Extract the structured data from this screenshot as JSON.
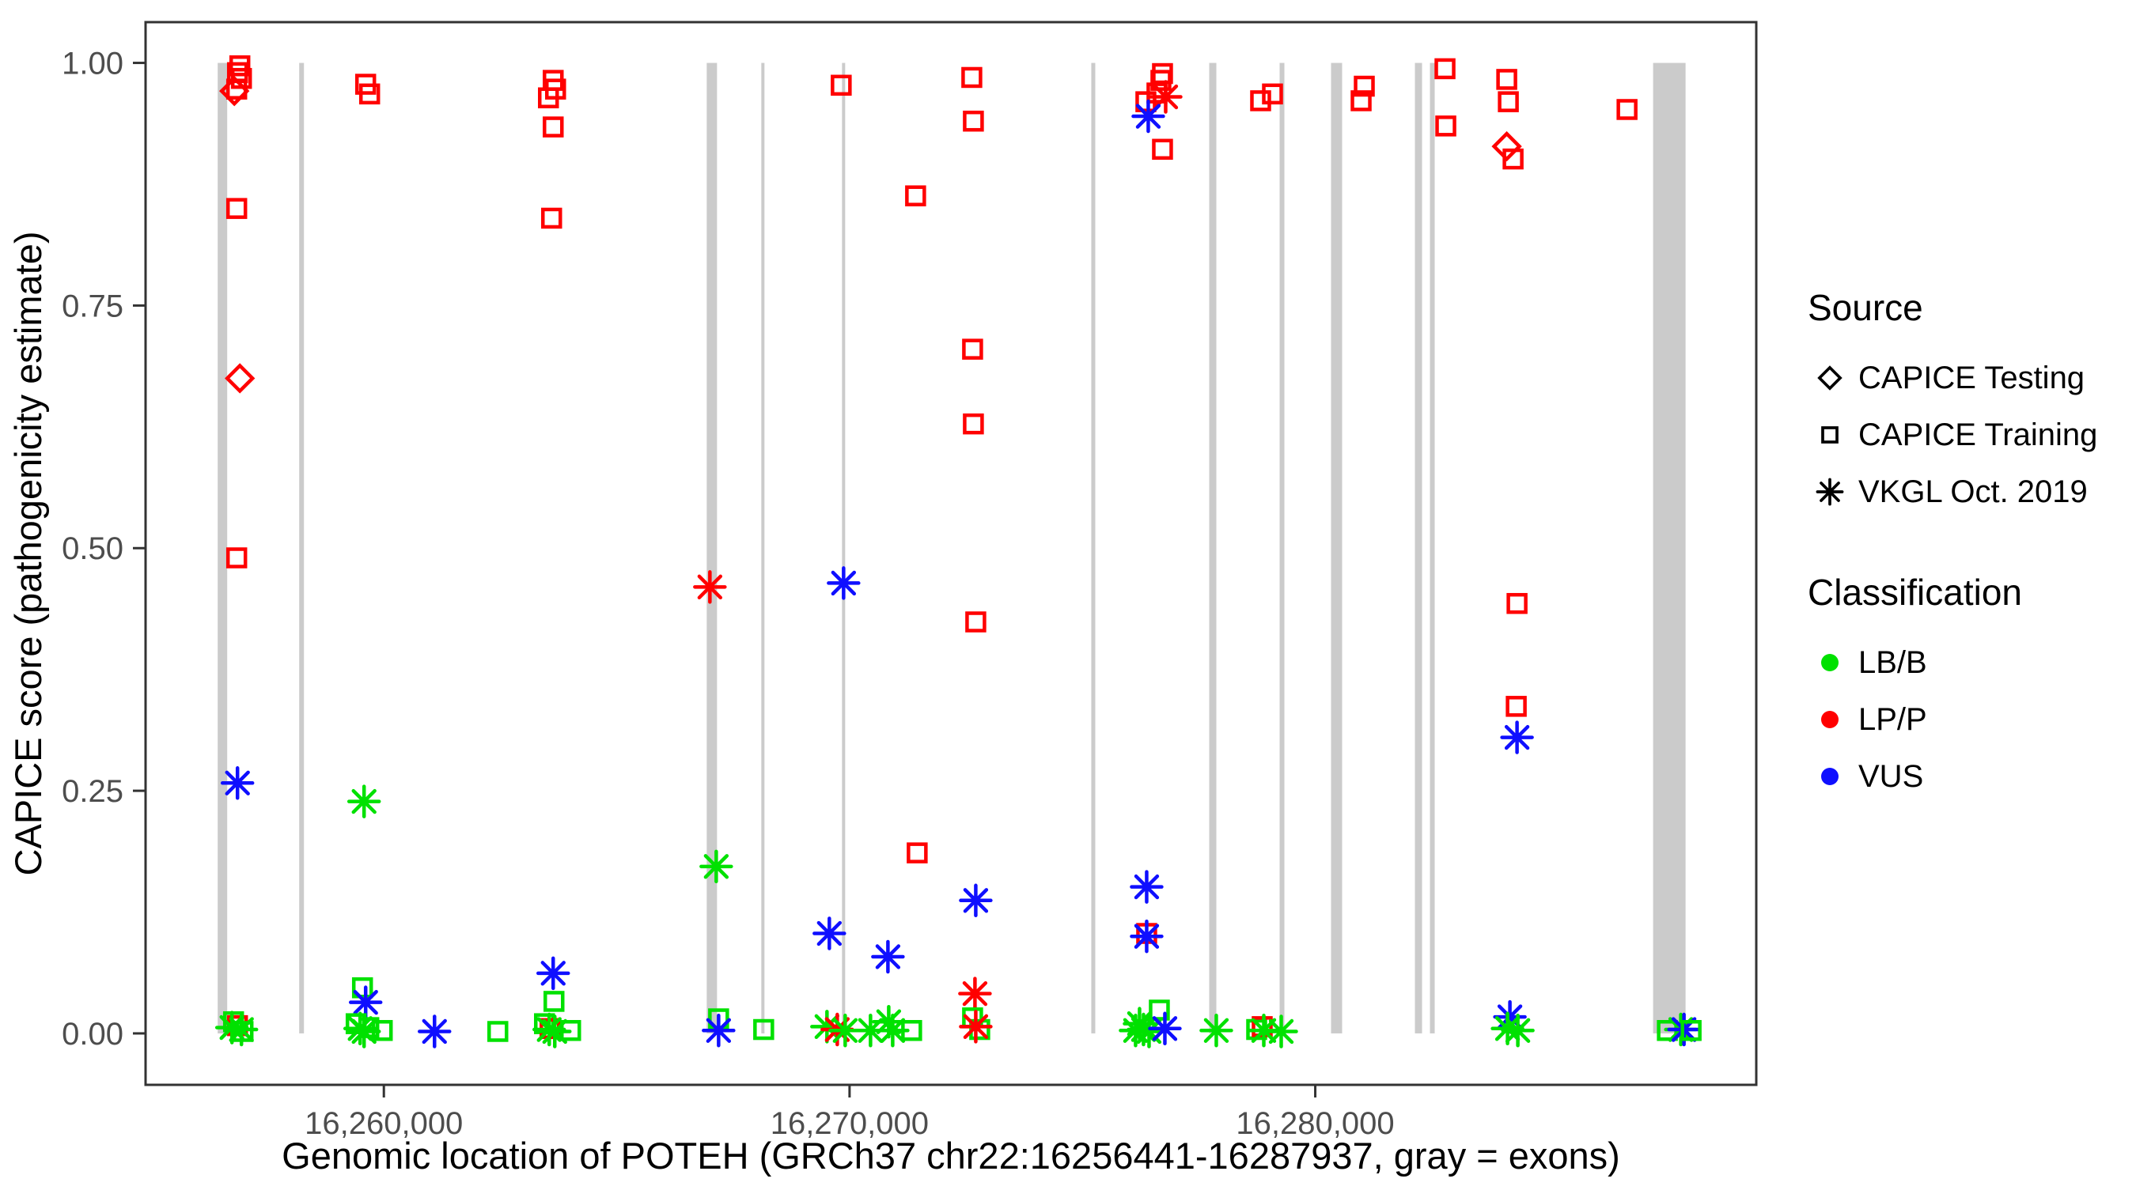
{
  "chart_data": {
    "type": "scatter",
    "title": "",
    "xlabel": "Genomic location of POTEH (GRCh37 chr22:16256441-16287937, gray = exons)",
    "ylabel": "CAPICE score (pathogenicity estimate)",
    "x_domain": [
      16254883,
      16289470
    ],
    "y_domain": [
      -0.053,
      1.042
    ],
    "grid": false,
    "x_ticks": [
      {
        "value": 16260000,
        "label": "16,260,000"
      },
      {
        "value": 16270000,
        "label": "16,270,000"
      },
      {
        "value": 16280000,
        "label": "16,280,000"
      }
    ],
    "y_ticks": [
      {
        "value": 0.0,
        "label": "0.00"
      },
      {
        "value": 0.25,
        "label": "0.25"
      },
      {
        "value": 0.5,
        "label": "0.50"
      },
      {
        "value": 0.75,
        "label": "0.75"
      },
      {
        "value": 1.0,
        "label": "1.00"
      }
    ],
    "exon_color": "#CBCBCB",
    "exons": [
      [
        16256432,
        16256636
      ],
      [
        16258182,
        16258284
      ],
      [
        16266933,
        16267154
      ],
      [
        16268105,
        16268173
      ],
      [
        16269838,
        16269906
      ],
      [
        16275191,
        16275276
      ],
      [
        16277723,
        16277876
      ],
      [
        16279235,
        16279337
      ],
      [
        16280339,
        16280577
      ],
      [
        16282140,
        16282293
      ],
      [
        16282463,
        16282565
      ],
      [
        16287255,
        16287952
      ]
    ],
    "source_shapes": {
      "CAPICE Testing": "diamond",
      "CAPICE Training": "square",
      "VKGL Oct. 2019": "asterisk"
    },
    "classification_colors": {
      "LB/B": "#00E100",
      "LP/P": "#FF0000",
      "VUS": "#0F0FFF"
    },
    "codes": {
      "source": {
        "T": "CAPICE Training",
        "D": "CAPICE Testing",
        "V": "VKGL Oct. 2019"
      },
      "classification": {
        "B": "LB/B",
        "P": "LP/P",
        "U": "VUS"
      }
    },
    "points": [
      [
        16256908,
        0.997,
        "T",
        "P"
      ],
      [
        16256857,
        0.99,
        "T",
        "P"
      ],
      [
        16256942,
        0.984,
        "T",
        "P"
      ],
      [
        16256840,
        0.973,
        "T",
        "P"
      ],
      [
        16256789,
        0.971,
        "D",
        "P"
      ],
      [
        16256840,
        0.85,
        "T",
        "P"
      ],
      [
        16256908,
        0.675,
        "D",
        "P"
      ],
      [
        16256840,
        0.49,
        "T",
        "P"
      ],
      [
        16256857,
        0.258,
        "V",
        "U"
      ],
      [
        16256772,
        0.012,
        "T",
        "B"
      ],
      [
        16256857,
        0.008,
        "T",
        "P"
      ],
      [
        16256738,
        0.006,
        "V",
        "B"
      ],
      [
        16256942,
        0.004,
        "V",
        "B"
      ],
      [
        16256976,
        0.002,
        "T",
        "B"
      ],
      [
        16259609,
        0.978,
        "T",
        "P"
      ],
      [
        16259694,
        0.968,
        "T",
        "P"
      ],
      [
        16259575,
        0.239,
        "V",
        "B"
      ],
      [
        16259541,
        0.047,
        "T",
        "B"
      ],
      [
        16259609,
        0.032,
        "V",
        "U"
      ],
      [
        16259405,
        0.01,
        "T",
        "B"
      ],
      [
        16259490,
        0.005,
        "V",
        "B"
      ],
      [
        16259575,
        0.002,
        "V",
        "B"
      ],
      [
        16259677,
        0.006,
        "T",
        "B"
      ],
      [
        16259966,
        0.003,
        "T",
        "B"
      ],
      [
        16261088,
        0.002,
        "V",
        "U"
      ],
      [
        16262447,
        0.002,
        "T",
        "B"
      ],
      [
        16263636,
        0.982,
        "T",
        "P"
      ],
      [
        16263687,
        0.973,
        "T",
        "P"
      ],
      [
        16263534,
        0.964,
        "T",
        "P"
      ],
      [
        16263636,
        0.934,
        "T",
        "P"
      ],
      [
        16263602,
        0.84,
        "T",
        "P"
      ],
      [
        16263636,
        0.062,
        "V",
        "U"
      ],
      [
        16263653,
        0.033,
        "T",
        "B"
      ],
      [
        16263449,
        0.01,
        "T",
        "B"
      ],
      [
        16263568,
        0.005,
        "T",
        "P"
      ],
      [
        16263551,
        0.004,
        "V",
        "B"
      ],
      [
        16263670,
        0.002,
        "V",
        "B"
      ],
      [
        16264010,
        0.003,
        "T",
        "B"
      ],
      [
        16267001,
        0.46,
        "V",
        "P"
      ],
      [
        16267137,
        0.172,
        "V",
        "B"
      ],
      [
        16267188,
        0.015,
        "T",
        "B"
      ],
      [
        16267188,
        0.003,
        "V",
        "U"
      ],
      [
        16268156,
        0.004,
        "T",
        "B"
      ],
      [
        16269821,
        0.977,
        "T",
        "P"
      ],
      [
        16269872,
        0.464,
        "V",
        "U"
      ],
      [
        16269566,
        0.103,
        "V",
        "U"
      ],
      [
        16269515,
        0.007,
        "V",
        "B"
      ],
      [
        16269736,
        0.004,
        "V",
        "P"
      ],
      [
        16269906,
        0.003,
        "V",
        "B"
      ],
      [
        16270824,
        0.079,
        "V",
        "U"
      ],
      [
        16270450,
        0.003,
        "V",
        "B"
      ],
      [
        16270841,
        0.012,
        "V",
        "B"
      ],
      [
        16270926,
        0.003,
        "V",
        "B"
      ],
      [
        16271333,
        0.003,
        "T",
        "B"
      ],
      [
        16271418,
        0.863,
        "T",
        "P"
      ],
      [
        16271452,
        0.186,
        "T",
        "P"
      ],
      [
        16272625,
        0.985,
        "T",
        "P"
      ],
      [
        16272659,
        0.94,
        "T",
        "P"
      ],
      [
        16272642,
        0.705,
        "T",
        "P"
      ],
      [
        16272659,
        0.628,
        "T",
        "P"
      ],
      [
        16272710,
        0.424,
        "T",
        "P"
      ],
      [
        16272710,
        0.137,
        "V",
        "U"
      ],
      [
        16272693,
        0.041,
        "V",
        "P"
      ],
      [
        16272642,
        0.016,
        "T",
        "B"
      ],
      [
        16272795,
        0.004,
        "T",
        "B"
      ],
      [
        16272710,
        0.007,
        "V",
        "P"
      ],
      [
        16276720,
        0.989,
        "T",
        "P"
      ],
      [
        16276686,
        0.982,
        "T",
        "P"
      ],
      [
        16276601,
        0.969,
        "T",
        "P"
      ],
      [
        16276788,
        0.965,
        "V",
        "P"
      ],
      [
        16276363,
        0.96,
        "T",
        "P"
      ],
      [
        16276414,
        0.945,
        "V",
        "U"
      ],
      [
        16276720,
        0.911,
        "T",
        "P"
      ],
      [
        16276380,
        0.151,
        "V",
        "U"
      ],
      [
        16276380,
        0.103,
        "T",
        "P"
      ],
      [
        16276380,
        0.1,
        "V",
        "U"
      ],
      [
        16276652,
        0.024,
        "T",
        "B"
      ],
      [
        16276227,
        0.01,
        "V",
        "B"
      ],
      [
        16276312,
        0.004,
        "V",
        "B"
      ],
      [
        16276431,
        0.002,
        "V",
        "B"
      ],
      [
        16276142,
        0.003,
        "V",
        "B"
      ],
      [
        16276771,
        0.005,
        "V",
        "U"
      ],
      [
        16278827,
        0.961,
        "T",
        "P"
      ],
      [
        16279082,
        0.968,
        "T",
        "P"
      ],
      [
        16277875,
        0.003,
        "V",
        "B"
      ],
      [
        16278742,
        0.004,
        "T",
        "B"
      ],
      [
        16278861,
        0.007,
        "T",
        "P"
      ],
      [
        16278895,
        0.003,
        "V",
        "B"
      ],
      [
        16279269,
        0.002,
        "V",
        "B"
      ],
      [
        16281053,
        0.976,
        "T",
        "P"
      ],
      [
        16280985,
        0.961,
        "T",
        "P"
      ],
      [
        16282786,
        0.994,
        "T",
        "P"
      ],
      [
        16282803,
        0.935,
        "T",
        "P"
      ],
      [
        16284112,
        0.983,
        "T",
        "P"
      ],
      [
        16284146,
        0.96,
        "T",
        "P"
      ],
      [
        16284112,
        0.914,
        "D",
        "P"
      ],
      [
        16284248,
        0.901,
        "T",
        "P"
      ],
      [
        16284333,
        0.443,
        "T",
        "P"
      ],
      [
        16284316,
        0.337,
        "T",
        "P"
      ],
      [
        16284333,
        0.305,
        "V",
        "U"
      ],
      [
        16284180,
        0.017,
        "V",
        "U"
      ],
      [
        16284129,
        0.005,
        "V",
        "B"
      ],
      [
        16284350,
        0.003,
        "V",
        "B"
      ],
      [
        16286695,
        0.952,
        "T",
        "P"
      ],
      [
        16287561,
        0.003,
        "T",
        "B"
      ],
      [
        16287850,
        0.004,
        "V",
        "B"
      ],
      [
        16287918,
        0.004,
        "V",
        "U"
      ],
      [
        16288071,
        0.003,
        "T",
        "B"
      ]
    ]
  },
  "legend": {
    "source": {
      "title": "Source",
      "items": [
        {
          "label": "CAPICE Testing",
          "shape": "diamond"
        },
        {
          "label": "CAPICE Training",
          "shape": "square"
        },
        {
          "label": "VKGL Oct. 2019",
          "shape": "asterisk"
        }
      ]
    },
    "classification": {
      "title": "Classification",
      "items": [
        {
          "label": "LB/B",
          "color": "#00E100"
        },
        {
          "label": "LP/P",
          "color": "#FF0000"
        },
        {
          "label": "VUS",
          "color": "#0F0FFF"
        }
      ]
    }
  }
}
